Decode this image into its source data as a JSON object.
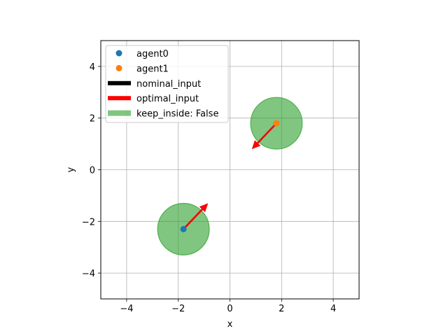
{
  "chart_data": {
    "type": "scatter",
    "title": "",
    "xlabel": "x",
    "ylabel": "y",
    "xlim": [
      -5,
      5
    ],
    "ylim": [
      -5,
      5
    ],
    "xticks": [
      "−4",
      "−2",
      "0",
      "2",
      "4"
    ],
    "yticks": [
      "−4",
      "−2",
      "0",
      "2",
      "4"
    ],
    "grid": true,
    "legend_position": "top-left",
    "series": [
      {
        "name": "agent0",
        "x": -1.8,
        "y": -2.3,
        "color": "#1f77b4"
      },
      {
        "name": "agent1",
        "x": 1.8,
        "y": 1.8,
        "color": "#ff7f0e"
      }
    ],
    "regions": [
      {
        "cx": -1.8,
        "cy": -2.3,
        "r": 1.0,
        "color": "#2ca02c"
      },
      {
        "cx": 1.8,
        "cy": 1.8,
        "r": 1.0,
        "color": "#2ca02c"
      }
    ],
    "arrows": [
      {
        "kind": "nominal_input",
        "x0": -1.8,
        "y0": -2.3,
        "x1": -0.85,
        "y1": -1.3,
        "color": "#000000"
      },
      {
        "kind": "optimal_input",
        "x0": -1.8,
        "y0": -2.3,
        "x1": -0.85,
        "y1": -1.3,
        "color": "#ff0000"
      },
      {
        "kind": "nominal_input",
        "x0": 1.8,
        "y0": 1.8,
        "x1": 0.85,
        "y1": 0.8,
        "color": "#000000"
      },
      {
        "kind": "optimal_input",
        "x0": 1.8,
        "y0": 1.8,
        "x1": 0.85,
        "y1": 0.8,
        "color": "#ff0000"
      }
    ],
    "legend": [
      {
        "label": "agent0",
        "kind": "marker",
        "color": "#1f77b4"
      },
      {
        "label": "agent1",
        "kind": "marker",
        "color": "#ff7f0e"
      },
      {
        "label": "nominal_input",
        "kind": "line",
        "color": "#000000"
      },
      {
        "label": "optimal_input",
        "kind": "line",
        "color": "#ff0000"
      },
      {
        "label": "keep_inside: False",
        "kind": "patch",
        "color": "#2ca02c"
      }
    ]
  }
}
